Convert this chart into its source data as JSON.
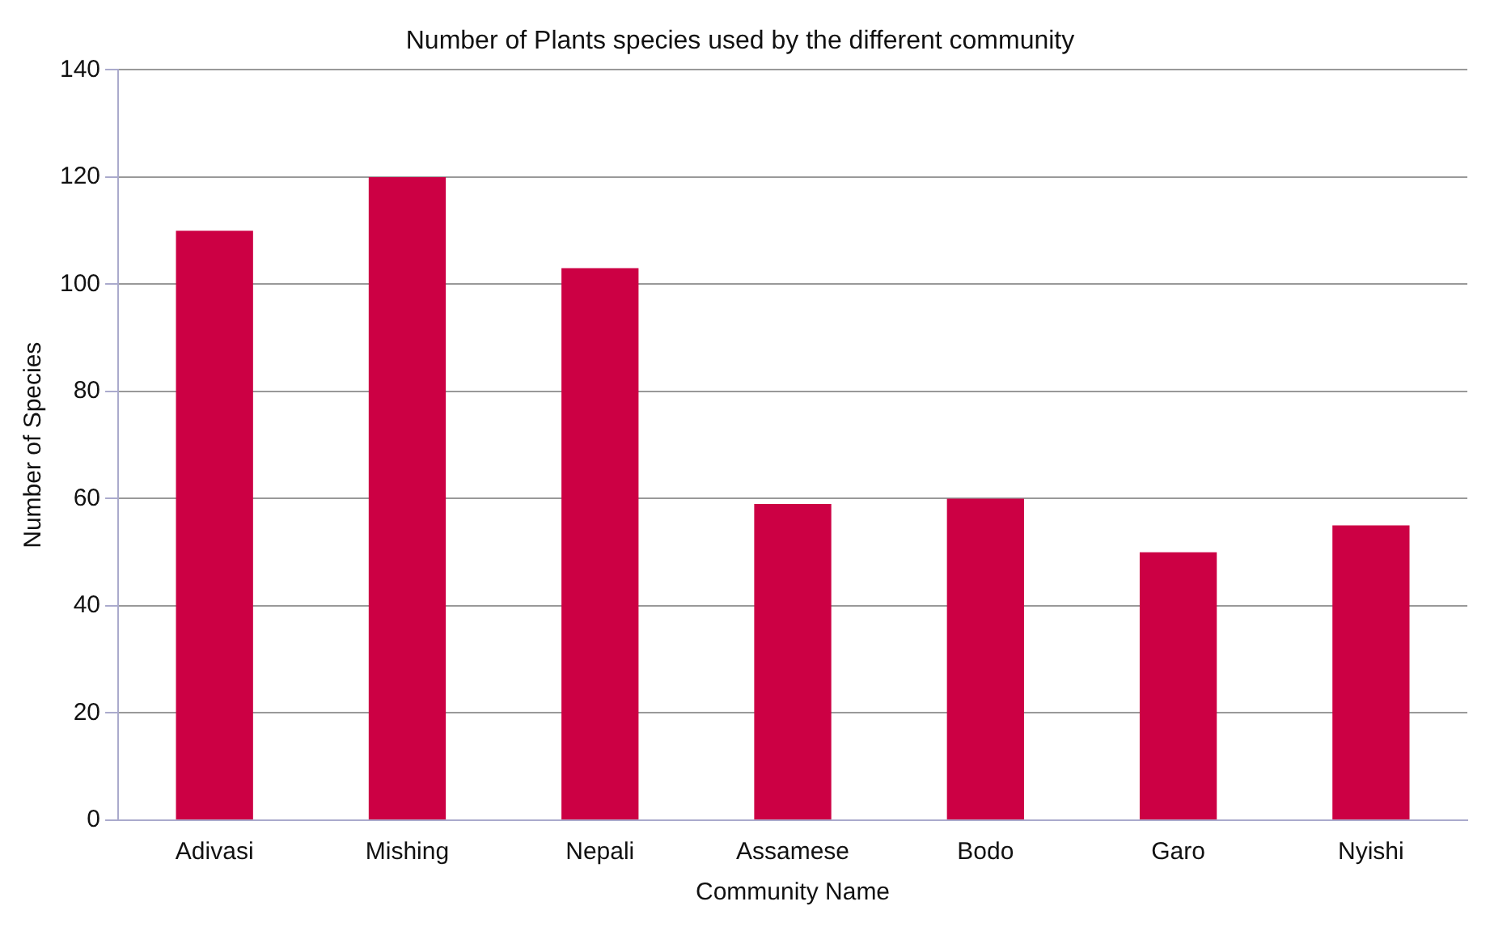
{
  "chart_data": {
    "type": "bar",
    "title": "Number of Plants species used by the different community",
    "xlabel": "Community Name",
    "ylabel": "Number of Species",
    "categories": [
      "Adivasi",
      "Mishing",
      "Nepali",
      "Assamese",
      "Bodo",
      "Garo",
      "Nyishi"
    ],
    "values": [
      110,
      120,
      103,
      59,
      60,
      50,
      55
    ],
    "color": "#cc0044",
    "ylim": [
      0,
      140
    ],
    "yticks": [
      0,
      20,
      40,
      60,
      80,
      100,
      120,
      140
    ],
    "grid": "y",
    "legend": false
  }
}
